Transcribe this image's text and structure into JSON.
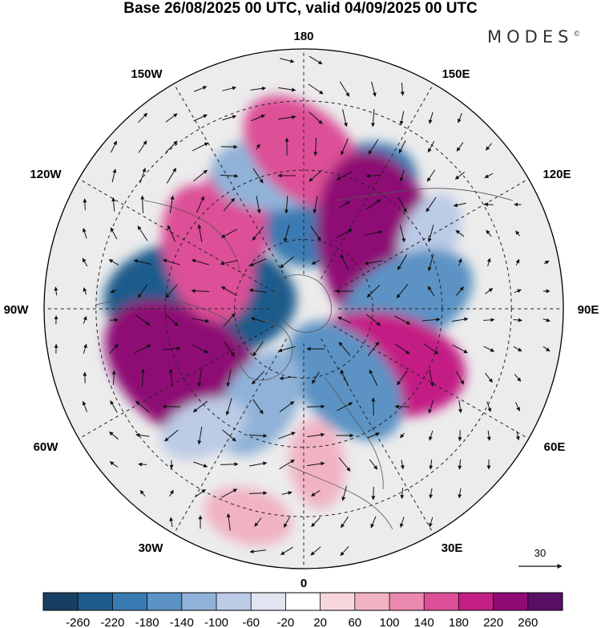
{
  "title": "Base 26/08/2025 00 UTC, valid 04/09/2025 00 UTC",
  "brand": "MODES",
  "brand_mark": "©",
  "longitude_labels": {
    "top": "180",
    "bottom": "0",
    "left": "90W",
    "right": "90E",
    "nw_upper": "150W",
    "nw_lower": "120W",
    "ne_upper": "150E",
    "ne_lower": "120E",
    "sw_upper": "60W",
    "sw_lower": "30W",
    "se_upper": "60E",
    "se_lower": "30E"
  },
  "vector_reference": {
    "value": "30"
  },
  "colorbar": {
    "ticks": [
      "-260",
      "-220",
      "-180",
      "-140",
      "-100",
      "-60",
      "-20",
      "20",
      "60",
      "100",
      "140",
      "180",
      "220",
      "260"
    ],
    "colors": [
      "#173f63",
      "#1f5b8d",
      "#3a7ab2",
      "#5c93c4",
      "#90b2d8",
      "#bccbe6",
      "#e2e4f1",
      "#ffffff",
      "#f7d7dc",
      "#f1b3c4",
      "#ea88ad",
      "#dd4f97",
      "#c41f85",
      "#8e0a74",
      "#5a0f66"
    ]
  },
  "anomaly_centers": [
    {
      "lon": -95,
      "lat": 60,
      "value": -250
    },
    {
      "lon": -60,
      "lat": 52,
      "value": 220
    },
    {
      "lon": -120,
      "lat": 58,
      "value": 160
    },
    {
      "lon": -150,
      "lat": 55,
      "value": 140
    },
    {
      "lon": 160,
      "lat": 58,
      "value": -190
    },
    {
      "lon": -165,
      "lat": 50,
      "value": -100
    },
    {
      "lon": 180,
      "lat": 45,
      "value": 150
    },
    {
      "lon": 130,
      "lat": 62,
      "value": 240
    },
    {
      "lon": 120,
      "lat": 48,
      "value": -80
    },
    {
      "lon": 95,
      "lat": 60,
      "value": -150
    },
    {
      "lon": 55,
      "lat": 62,
      "value": 200
    },
    {
      "lon": 30,
      "lat": 66,
      "value": -170
    },
    {
      "lon": 5,
      "lat": 45,
      "value": 80
    },
    {
      "lon": -25,
      "lat": 60,
      "value": -120
    },
    {
      "lon": -40,
      "lat": 45,
      "value": -60
    },
    {
      "lon": -15,
      "lat": 28,
      "value": 60
    }
  ]
}
